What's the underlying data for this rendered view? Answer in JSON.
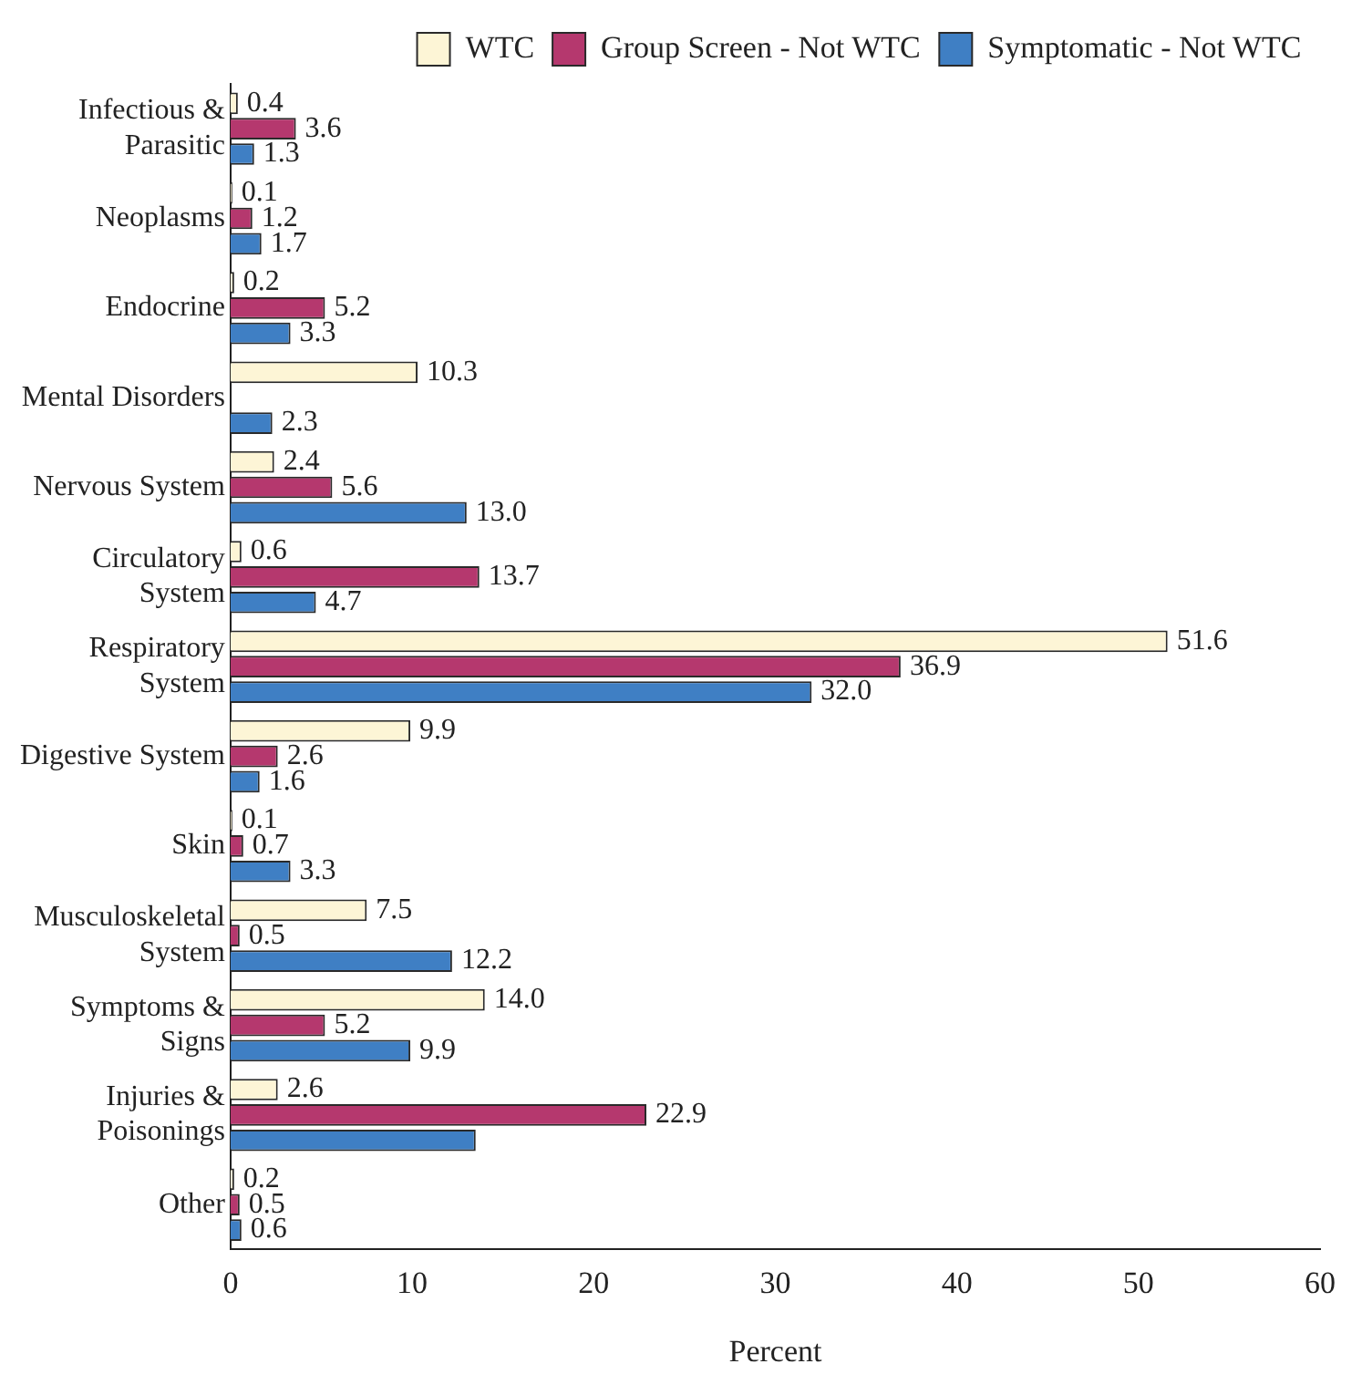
{
  "chart_data": {
    "type": "bar",
    "orientation": "horizontal",
    "xlabel": "Percent",
    "categories": [
      "Infectious & Parasitic",
      "Neoplasms",
      "Endocrine",
      "Mental Disorders",
      "Nervous System",
      "Circulatory System",
      "Respiratory System",
      "Digestive System",
      "Skin",
      "Musculoskeletal System",
      "Symptoms & Signs",
      "Injuries & Poisonings",
      "Other"
    ],
    "series": [
      {
        "name": "WTC",
        "color": "#fdf5d6",
        "values": [
          0.4,
          0.1,
          0.2,
          10.3,
          2.4,
          0.6,
          51.6,
          9.9,
          0.1,
          7.5,
          14.0,
          2.6,
          0.2
        ],
        "value_labels": [
          "0.4",
          "0.1",
          "0.2",
          "10.3",
          "2.4",
          "0.6",
          "51.6",
          "9.9",
          "0.1",
          "7.5",
          "14.0",
          "2.6",
          "0.2"
        ]
      },
      {
        "name": "Group Screen - Not WTC",
        "color": "#b5386e",
        "values": [
          3.6,
          1.2,
          5.2,
          null,
          5.6,
          13.7,
          36.9,
          2.6,
          0.7,
          0.5,
          5.2,
          22.9,
          0.5
        ],
        "value_labels": [
          "3.6",
          "1.2",
          "5.2",
          null,
          "5.6",
          "13.7",
          "36.9",
          "2.6",
          "0.7",
          "0.5",
          "5.2",
          "22.9",
          "0.5"
        ]
      },
      {
        "name": "Symptomatic - Not WTC",
        "color": "#3f7fc4",
        "values": [
          1.3,
          1.7,
          3.3,
          2.3,
          13.0,
          4.7,
          32.0,
          1.6,
          3.3,
          12.2,
          9.9,
          13.5,
          0.6
        ],
        "value_labels": [
          "1.3",
          "1.7",
          "3.3",
          "2.3",
          "13.0",
          "4.7",
          "32.0",
          "1.6",
          "3.3",
          "12.2",
          "9.9",
          null,
          "0.6"
        ]
      }
    ],
    "xlim": [
      0,
      60
    ],
    "xticks": [
      0,
      10,
      20,
      30,
      40,
      50,
      60
    ],
    "grid": false,
    "legend": "top"
  }
}
